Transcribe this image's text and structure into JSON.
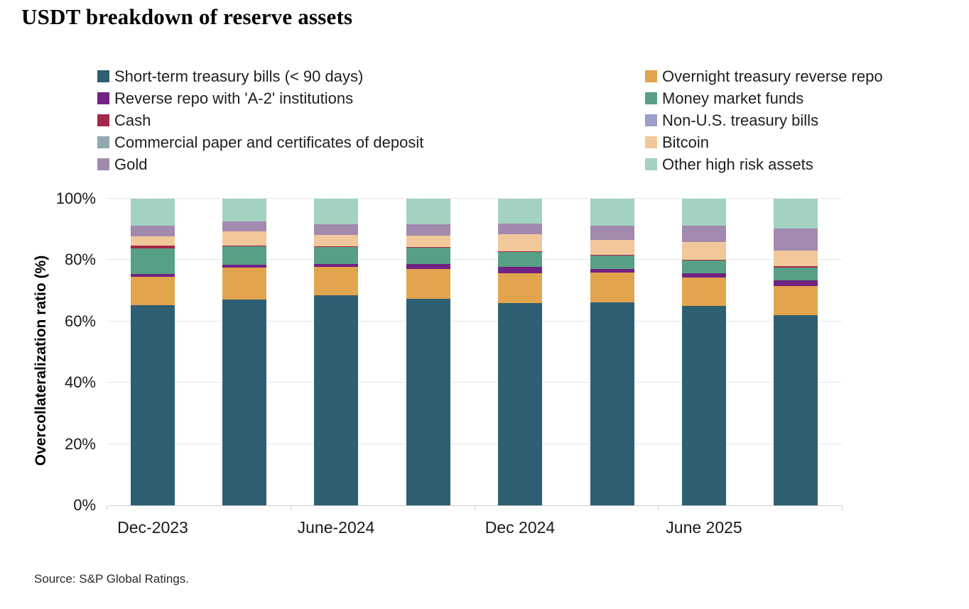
{
  "title": "USDT breakdown of reserve assets",
  "source": "Source: S&P Global Ratings.",
  "y_axis": {
    "title": "Overcollateralization ratio (%)",
    "tick_labels": [
      "0%",
      "20%",
      "40%",
      "60%",
      "80%",
      "100%"
    ]
  },
  "chart_data": {
    "type": "bar",
    "stacked": true,
    "title": "USDT breakdown of reserve assets",
    "ylabel": "Overcollateralization ratio (%)",
    "xlabel": "",
    "unit": "%",
    "ylim": [
      0,
      100
    ],
    "grid": "horizontal",
    "legend_position": "top-two-columns",
    "categories": [
      "Dec-2023",
      "",
      "June-2024",
      "",
      "Dec 2024",
      "",
      "June 2025",
      ""
    ],
    "x_tick_labels": [
      "Dec-2023",
      "June-2024",
      "Dec 2024",
      "June 2025"
    ],
    "series": [
      {
        "name": "Short-term treasury bills (< 90 days)",
        "color": "#2E5F73",
        "legend_column": "left",
        "values": [
          65.2,
          67.1,
          68.6,
          67.4,
          66.0,
          66.2,
          65.1,
          62.0
        ]
      },
      {
        "name": "Overnight treasury reverse repo",
        "color": "#E2A44D",
        "legend_column": "right",
        "values": [
          9.3,
          10.4,
          9.2,
          9.8,
          9.7,
          9.7,
          9.3,
          9.6
        ]
      },
      {
        "name": "Reverse repo with 'A-2' institutions",
        "color": "#722282",
        "legend_column": "left",
        "values": [
          1.0,
          1.0,
          0.8,
          1.5,
          2.1,
          1.3,
          1.2,
          1.9
        ]
      },
      {
        "name": "Money market funds",
        "color": "#57A085",
        "legend_column": "right",
        "values": [
          8.4,
          6.0,
          5.6,
          5.3,
          4.9,
          4.2,
          4.2,
          4.1
        ]
      },
      {
        "name": "Cash",
        "color": "#A32949",
        "legend_column": "left",
        "values": [
          0.8,
          0.3,
          0.4,
          0.3,
          0.3,
          0.3,
          0.3,
          0.4
        ]
      },
      {
        "name": "Non-U.S. treasury bills",
        "color": "#9AA0CB",
        "legend_column": "right",
        "values": [
          0,
          0,
          0,
          0,
          0,
          0,
          0,
          0
        ]
      },
      {
        "name": "Commercial paper and certificates of deposit",
        "color": "#92AAB2",
        "legend_column": "left",
        "values": [
          0,
          0,
          0,
          0,
          0,
          0,
          0,
          0
        ]
      },
      {
        "name": "Bitcoin",
        "color": "#F2C89B",
        "legend_column": "right",
        "values": [
          3.0,
          4.6,
          3.6,
          3.6,
          5.4,
          5.0,
          5.8,
          5.0
        ]
      },
      {
        "name": "Gold",
        "color": "#A289AE",
        "legend_column": "left",
        "values": [
          3.5,
          3.2,
          3.4,
          3.8,
          3.5,
          4.6,
          5.4,
          7.3
        ]
      },
      {
        "name": "Other high risk assets",
        "color": "#A3D2C0",
        "legend_column": "right",
        "values": [
          8.8,
          7.4,
          8.4,
          8.3,
          8.1,
          8.7,
          8.7,
          9.7
        ]
      }
    ]
  }
}
